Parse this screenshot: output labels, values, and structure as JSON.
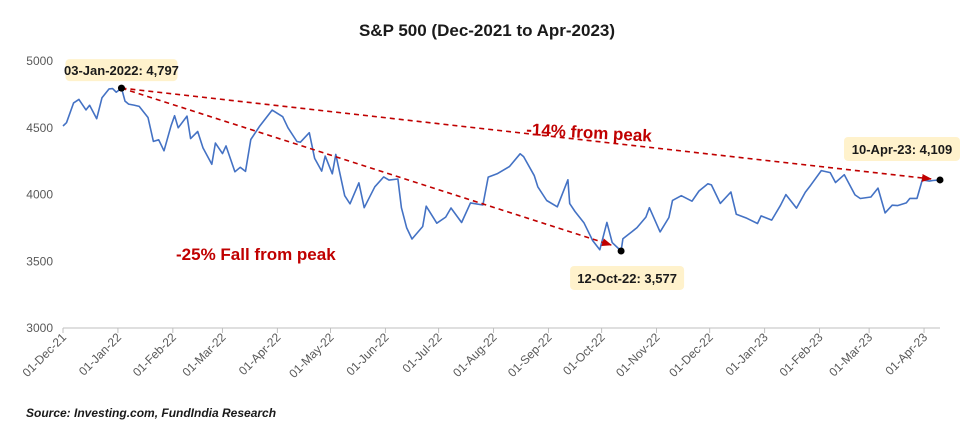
{
  "chart_data": {
    "type": "line",
    "title": "S&P 500 (Dec-2021 to Apr-2023)",
    "ylim": [
      3000,
      5000
    ],
    "yticks": [
      "3000",
      "3500",
      "4000",
      "4500",
      "5000"
    ],
    "xtick_labels": [
      "01-Dec-21",
      "01-Jan-22",
      "01-Feb-22",
      "01-Mar-22",
      "01-Apr-22",
      "01-May-22",
      "01-Jun-22",
      "01-Jul-22",
      "01-Aug-22",
      "01-Sep-22",
      "01-Oct-22",
      "01-Nov-22",
      "01-Dec-22",
      "01-Jan-23",
      "01-Feb-23",
      "01-Mar-23",
      "01-Apr-23"
    ],
    "series": [
      {
        "color": "#4472c4",
        "points": [
          [
            "2021-12-01",
            4513
          ],
          [
            "2021-12-03",
            4538
          ],
          [
            "2021-12-07",
            4686
          ],
          [
            "2021-12-10",
            4712
          ],
          [
            "2021-12-14",
            4634
          ],
          [
            "2021-12-16",
            4668
          ],
          [
            "2021-12-20",
            4568
          ],
          [
            "2021-12-23",
            4725
          ],
          [
            "2021-12-27",
            4791
          ],
          [
            "2021-12-29",
            4793
          ],
          [
            "2021-12-31",
            4766
          ],
          [
            "2022-01-03",
            4797
          ],
          [
            "2022-01-05",
            4700
          ],
          [
            "2022-01-07",
            4677
          ],
          [
            "2022-01-10",
            4670
          ],
          [
            "2022-01-13",
            4660
          ],
          [
            "2022-01-18",
            4577
          ],
          [
            "2022-01-21",
            4398
          ],
          [
            "2022-01-24",
            4410
          ],
          [
            "2022-01-27",
            4327
          ],
          [
            "2022-01-31",
            4516
          ],
          [
            "2022-02-02",
            4590
          ],
          [
            "2022-02-04",
            4500
          ],
          [
            "2022-02-09",
            4587
          ],
          [
            "2022-02-11",
            4419
          ],
          [
            "2022-02-15",
            4472
          ],
          [
            "2022-02-18",
            4349
          ],
          [
            "2022-02-23",
            4226
          ],
          [
            "2022-02-25",
            4385
          ],
          [
            "2022-03-01",
            4306
          ],
          [
            "2022-03-03",
            4364
          ],
          [
            "2022-03-08",
            4170
          ],
          [
            "2022-03-11",
            4204
          ],
          [
            "2022-03-14",
            4173
          ],
          [
            "2022-03-17",
            4412
          ],
          [
            "2022-03-22",
            4512
          ],
          [
            "2022-03-29",
            4632
          ],
          [
            "2022-04-04",
            4583
          ],
          [
            "2022-04-07",
            4500
          ],
          [
            "2022-04-12",
            4397
          ],
          [
            "2022-04-14",
            4392
          ],
          [
            "2022-04-19",
            4463
          ],
          [
            "2022-04-22",
            4272
          ],
          [
            "2022-04-26",
            4175
          ],
          [
            "2022-04-28",
            4288
          ],
          [
            "2022-05-02",
            4155
          ],
          [
            "2022-05-04",
            4300
          ],
          [
            "2022-05-09",
            3991
          ],
          [
            "2022-05-12",
            3930
          ],
          [
            "2022-05-17",
            4088
          ],
          [
            "2022-05-20",
            3901
          ],
          [
            "2022-05-26",
            4058
          ],
          [
            "2022-05-31",
            4132
          ],
          [
            "2022-06-03",
            4108
          ],
          [
            "2022-06-08",
            4116
          ],
          [
            "2022-06-10",
            3901
          ],
          [
            "2022-06-13",
            3750
          ],
          [
            "2022-06-16",
            3667
          ],
          [
            "2022-06-22",
            3760
          ],
          [
            "2022-06-24",
            3912
          ],
          [
            "2022-06-30",
            3785
          ],
          [
            "2022-07-05",
            3831
          ],
          [
            "2022-07-08",
            3899
          ],
          [
            "2022-07-14",
            3790
          ],
          [
            "2022-07-19",
            3937
          ],
          [
            "2022-07-26",
            3921
          ],
          [
            "2022-07-29",
            4130
          ],
          [
            "2022-08-03",
            4155
          ],
          [
            "2022-08-10",
            4210
          ],
          [
            "2022-08-16",
            4305
          ],
          [
            "2022-08-18",
            4284
          ],
          [
            "2022-08-24",
            4141
          ],
          [
            "2022-08-26",
            4058
          ],
          [
            "2022-08-31",
            3955
          ],
          [
            "2022-09-06",
            3908
          ],
          [
            "2022-09-12",
            4110
          ],
          [
            "2022-09-13",
            3932
          ],
          [
            "2022-09-16",
            3873
          ],
          [
            "2022-09-21",
            3789
          ],
          [
            "2022-09-26",
            3655
          ],
          [
            "2022-09-30",
            3586
          ],
          [
            "2022-10-04",
            3791
          ],
          [
            "2022-10-07",
            3640
          ],
          [
            "2022-10-12",
            3577
          ],
          [
            "2022-10-13",
            3669
          ],
          [
            "2022-10-18",
            3720
          ],
          [
            "2022-10-21",
            3752
          ],
          [
            "2022-10-26",
            3831
          ],
          [
            "2022-10-28",
            3901
          ],
          [
            "2022-11-03",
            3720
          ],
          [
            "2022-11-08",
            3828
          ],
          [
            "2022-11-10",
            3956
          ],
          [
            "2022-11-15",
            3991
          ],
          [
            "2022-11-21",
            3950
          ],
          [
            "2022-11-25",
            4026
          ],
          [
            "2022-11-30",
            4080
          ],
          [
            "2022-12-02",
            4072
          ],
          [
            "2022-12-07",
            3933
          ],
          [
            "2022-12-13",
            4019
          ],
          [
            "2022-12-16",
            3852
          ],
          [
            "2022-12-22",
            3822
          ],
          [
            "2022-12-28",
            3783
          ],
          [
            "2022-12-30",
            3840
          ],
          [
            "2023-01-05",
            3808
          ],
          [
            "2023-01-10",
            3919
          ],
          [
            "2023-01-13",
            3999
          ],
          [
            "2023-01-19",
            3898
          ],
          [
            "2023-01-24",
            4017
          ],
          [
            "2023-01-27",
            4070
          ],
          [
            "2023-02-02",
            4179
          ],
          [
            "2023-02-07",
            4164
          ],
          [
            "2023-02-10",
            4090
          ],
          [
            "2023-02-15",
            4148
          ],
          [
            "2023-02-21",
            3997
          ],
          [
            "2023-02-24",
            3970
          ],
          [
            "2023-03-02",
            3981
          ],
          [
            "2023-03-06",
            4048
          ],
          [
            "2023-03-10",
            3862
          ],
          [
            "2023-03-14",
            3920
          ],
          [
            "2023-03-17",
            3917
          ],
          [
            "2023-03-22",
            3937
          ],
          [
            "2023-03-24",
            3971
          ],
          [
            "2023-03-28",
            3971
          ],
          [
            "2023-03-31",
            4109
          ],
          [
            "2023-04-04",
            4100
          ],
          [
            "2023-04-06",
            4105
          ],
          [
            "2023-04-10",
            4109
          ]
        ]
      }
    ],
    "callouts": [
      {
        "date": "2022-01-03",
        "value": 4797,
        "label": "03-Jan-2022: 4,797"
      },
      {
        "date": "2022-10-12",
        "value": 3577,
        "label": "12-Oct-22: 3,577"
      },
      {
        "date": "2023-04-10",
        "value": 4109,
        "label": "10-Apr-23: 4,109"
      }
    ],
    "annotations": {
      "fall": "-25% Fall from peak",
      "from_peak": "-14% from peak"
    },
    "source": "Source: Investing.com, FundIndia Research",
    "colors": {
      "line": "#4472c4",
      "arrow": "#c00000",
      "callout_bg": "#fff2cc",
      "text": "#1a1a1a"
    }
  }
}
